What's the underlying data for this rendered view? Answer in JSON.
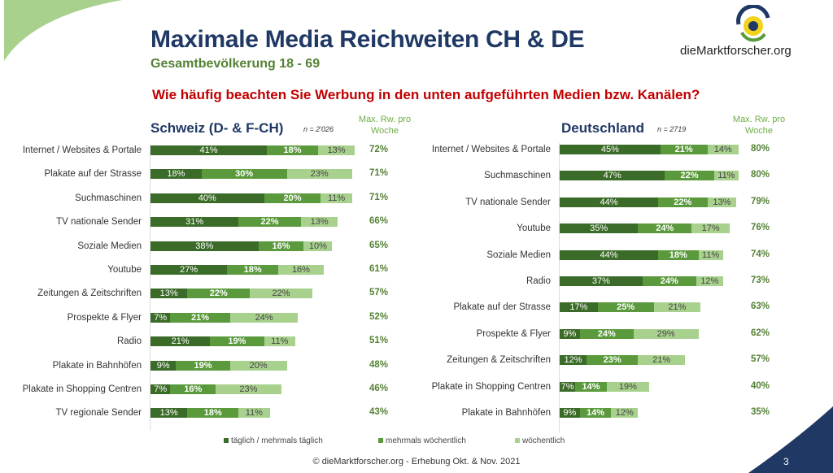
{
  "header": {
    "title": "Maximale Media Reichweiten CH & DE",
    "subtitle": "Gesamtbevölkerung 18 - 69",
    "question": "Wie häufig beachten Sie Werbung in den unten aufgeführten Medien bzw. Kanälen?",
    "logo": "dieMarktforscher.org"
  },
  "footer": {
    "text": "© dieMarktforscher.org - Erhebung Okt. & Nov. 2021",
    "page": "3"
  },
  "colors": {
    "daily": "#3b6b28",
    "weekly_multi": "#5a9a3c",
    "weekly": "#a9d18e",
    "total": "#548235",
    "title": "#1f3864",
    "question": "#c00000"
  },
  "chart_data": [
    {
      "type": "bar",
      "orientation": "horizontal",
      "stacked": true,
      "title": "Schweiz (D- & F-CH)",
      "n": "n = 2'026",
      "total_header": "Max. Rw. pro Woche",
      "categories": [
        "Internet / Websites & Portale",
        "Plakate auf der Strasse",
        "Suchmaschinen",
        "TV nationale Sender",
        "Soziale Medien",
        "Youtube",
        "Zeitungen & Zeitschriften",
        "Prospekte & Flyer",
        "Radio",
        "Plakate in Bahnhöfen",
        "Plakate in Shopping Centren",
        "TV regionale Sender"
      ],
      "series": [
        {
          "name": "täglich / mehrmals täglich",
          "values": [
            41,
            18,
            40,
            31,
            38,
            27,
            13,
            7,
            21,
            9,
            7,
            13
          ]
        },
        {
          "name": "mehrmals wöchentlich",
          "values": [
            18,
            30,
            20,
            22,
            16,
            18,
            22,
            21,
            19,
            19,
            16,
            18
          ]
        },
        {
          "name": "wöchentlich",
          "values": [
            13,
            23,
            11,
            13,
            10,
            16,
            22,
            24,
            11,
            20,
            23,
            11
          ]
        }
      ],
      "totals": [
        72,
        71,
        71,
        66,
        65,
        61,
        57,
        52,
        51,
        48,
        46,
        43
      ]
    },
    {
      "type": "bar",
      "orientation": "horizontal",
      "stacked": true,
      "title": "Deutschland",
      "n": "n = 2719",
      "total_header": "Max. Rw. pro Woche",
      "categories": [
        "Internet / Websites & Portale",
        "Suchmaschinen",
        "TV nationale Sender",
        "Youtube",
        "Soziale Medien",
        "Radio",
        "Plakate auf der Strasse",
        "Prospekte & Flyer",
        "Zeitungen & Zeitschriften",
        "Plakate in Shopping Centren",
        "Plakate in Bahnhöfen"
      ],
      "series": [
        {
          "name": "täglich / mehrmals täglich",
          "values": [
            45,
            47,
            44,
            35,
            44,
            37,
            17,
            9,
            12,
            7,
            9
          ]
        },
        {
          "name": "mehrmals wöchentlich",
          "values": [
            21,
            22,
            22,
            24,
            18,
            24,
            25,
            24,
            23,
            14,
            14
          ]
        },
        {
          "name": "wöchentlich",
          "values": [
            14,
            11,
            13,
            17,
            11,
            12,
            21,
            29,
            21,
            19,
            12
          ]
        }
      ],
      "totals": [
        80,
        80,
        79,
        76,
        74,
        73,
        63,
        62,
        57,
        40,
        35
      ]
    }
  ],
  "legend": [
    "täglich / mehrmals täglich",
    "mehrmals wöchentlich",
    "wöchentlich"
  ]
}
